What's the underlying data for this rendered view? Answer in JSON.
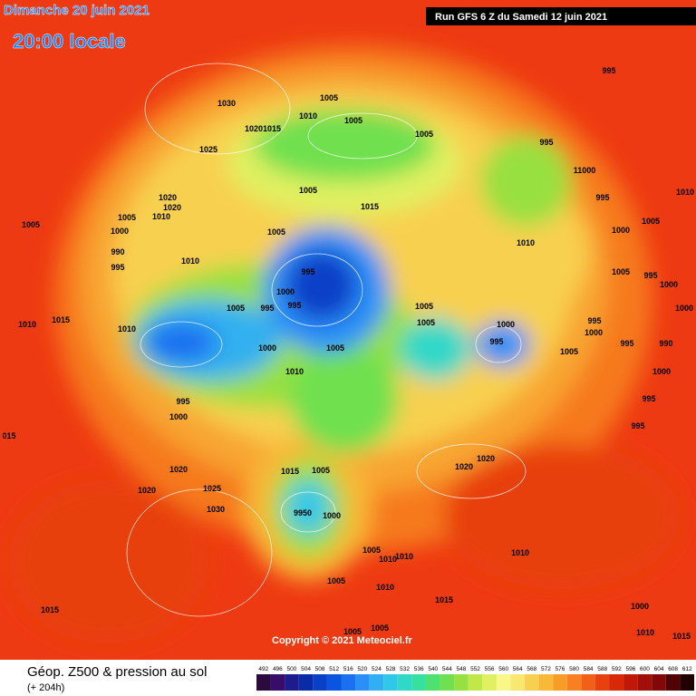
{
  "header": {
    "title": "Dimanche 20 juin 2021",
    "subtitle": "20:00 locale",
    "run": "Run GFS 6 Z du Samedi 12 juin 2021"
  },
  "copyright": "Copyright © 2021 Meteociel.fr",
  "footer": {
    "title": "Géop. Z500 & pression au sol",
    "lead": "(+ 204h)"
  },
  "scale": {
    "values": [
      492,
      496,
      500,
      504,
      508,
      512,
      516,
      520,
      524,
      528,
      532,
      536,
      540,
      544,
      548,
      552,
      556,
      560,
      564,
      568,
      572,
      576,
      580,
      584,
      588,
      592,
      596,
      600,
      604,
      608,
      612
    ],
    "colors": [
      "#2b0a3d",
      "#3a0c6a",
      "#1c1c8c",
      "#0a2aa8",
      "#0a3fc8",
      "#0a55e0",
      "#1a70f0",
      "#2a90f8",
      "#30b0f0",
      "#30c8e8",
      "#30d8c8",
      "#38e0a0",
      "#50e070",
      "#70e050",
      "#98e040",
      "#c0e848",
      "#e0f060",
      "#f8f888",
      "#f8e870",
      "#f8d050",
      "#f8b838",
      "#f89c28",
      "#f88020",
      "#f06018",
      "#e84010",
      "#d82808",
      "#c01808",
      "#a01008",
      "#800808",
      "#500404",
      "#200000"
    ]
  },
  "isobar_labels": [
    "995",
    "1030",
    "1005",
    "1010",
    "1005",
    "1020",
    "1015",
    "1005",
    "995",
    "1025",
    "11000",
    "1005",
    "995",
    "1010",
    "1020",
    "1020",
    "1015",
    "1005",
    "1010",
    "1005",
    "1005",
    "1000",
    "1005",
    "1010",
    "1000",
    "990",
    "995",
    "1010",
    "995",
    "1005",
    "995",
    "1000",
    "1000",
    "995",
    "1005",
    "995",
    "1000",
    "1010",
    "1015",
    "1005",
    "1000",
    "995",
    "1010",
    "1005",
    "1000",
    "995",
    "995",
    "990",
    "1000",
    "1005",
    "1005",
    "1000",
    "1010",
    "995",
    "995",
    "1000",
    "995",
    "015",
    "1020",
    "1020",
    "1020",
    "1015",
    "1005",
    "1025",
    "1020",
    "1030",
    "9950",
    "1000",
    "1005",
    "1010",
    "1010",
    "1010",
    "1005",
    "1010",
    "1015",
    "1000",
    "1015",
    "1010",
    "1005",
    "1005",
    "1015"
  ]
}
